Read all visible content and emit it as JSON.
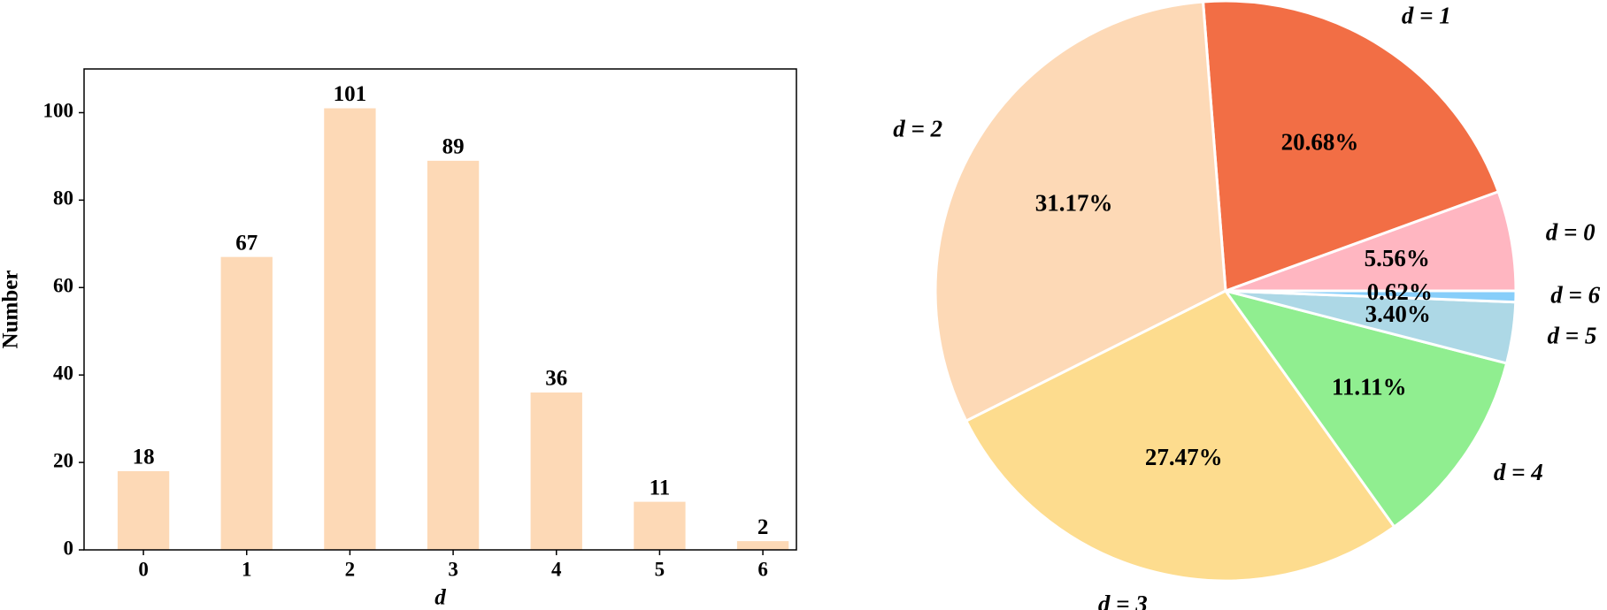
{
  "chart_data": [
    {
      "type": "bar",
      "xlabel": "d",
      "ylabel": "Number",
      "categories": [
        "0",
        "1",
        "2",
        "3",
        "4",
        "5",
        "6"
      ],
      "values": [
        18,
        67,
        101,
        89,
        36,
        11,
        2
      ],
      "color": "#fdd9b6",
      "ylim": [
        0,
        110
      ],
      "yticks": [
        0,
        20,
        40,
        60,
        80,
        100
      ]
    },
    {
      "type": "pie",
      "categories": [
        "d = 0",
        "d = 1",
        "d = 2",
        "d = 3",
        "d = 4",
        "d = 5",
        "d = 6"
      ],
      "values": [
        5.56,
        20.68,
        31.17,
        27.47,
        11.11,
        3.4,
        0.62
      ],
      "value_labels": [
        "5.56%",
        "20.68%",
        "31.17%",
        "27.47%",
        "11.11%",
        "3.40%",
        "0.62%"
      ],
      "colors": [
        "#ffb6c1",
        "#f26e45",
        "#fdd9b6",
        "#fddc8e",
        "#90ee90",
        "#add8e6",
        "#87cefa"
      ]
    }
  ]
}
